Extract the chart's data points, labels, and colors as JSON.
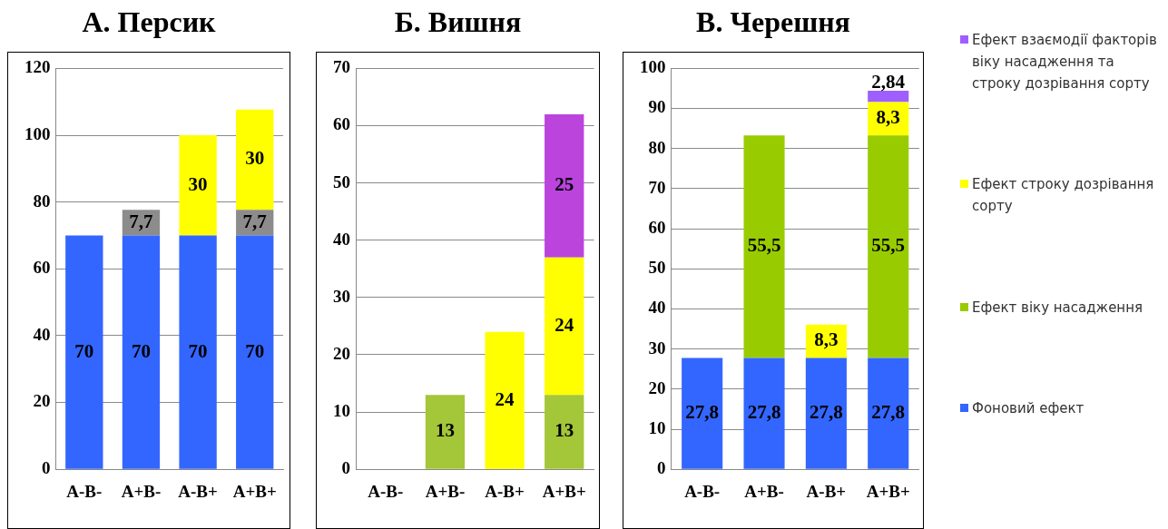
{
  "chart_data": [
    {
      "type": "bar",
      "title": "А. Персик",
      "categories": [
        "A-B-",
        "A+B-",
        "A-B+",
        "A+B+"
      ],
      "stacked": true,
      "grid": "y",
      "ylim": [
        0,
        120
      ],
      "yticks": [
        0,
        20,
        40,
        60,
        80,
        100,
        120
      ],
      "series": [
        {
          "color": "#3366ff",
          "values": [
            70,
            70,
            70,
            70
          ],
          "value_labels": [
            "70",
            "70",
            "70",
            "70"
          ]
        },
        {
          "color": "#8c8c8c",
          "values": [
            null,
            7.7,
            null,
            7.7
          ],
          "value_labels": [
            null,
            "7,7",
            null,
            "7,7"
          ]
        },
        {
          "color": "#ffff00",
          "values": [
            null,
            null,
            30,
            30
          ],
          "value_labels": [
            null,
            null,
            "30",
            "30"
          ]
        }
      ]
    },
    {
      "type": "bar",
      "title": "Б. Вишня",
      "categories": [
        "A-B-",
        "A+B-",
        "A-B+",
        "A+B+"
      ],
      "stacked": true,
      "grid": "y",
      "ylim": [
        0,
        70
      ],
      "yticks": [
        0,
        10,
        20,
        30,
        40,
        50,
        60,
        70
      ],
      "series": [
        {
          "color": "#a4c639",
          "values": [
            null,
            13,
            null,
            13
          ],
          "value_labels": [
            null,
            "13",
            null,
            "13"
          ]
        },
        {
          "color": "#ffff00",
          "values": [
            null,
            null,
            24,
            24
          ],
          "value_labels": [
            null,
            null,
            "24",
            "24"
          ]
        },
        {
          "color": "#bb44dd",
          "values": [
            null,
            null,
            null,
            25
          ],
          "value_labels": [
            null,
            null,
            null,
            "25"
          ]
        }
      ]
    },
    {
      "type": "bar",
      "title": "В. Черешня",
      "categories": [
        "A-B-",
        "A+B-",
        "A-B+",
        "A+B+"
      ],
      "stacked": true,
      "grid": "y",
      "legend": "right",
      "ylim": [
        0,
        100
      ],
      "yticks": [
        0,
        10,
        20,
        30,
        40,
        50,
        60,
        70,
        80,
        90,
        100
      ],
      "series": [
        {
          "name": "Фоновий ефект",
          "color": "#3366ff",
          "values": [
            27.8,
            27.8,
            27.8,
            27.8
          ],
          "value_labels": [
            "27,8",
            "27,8",
            "27,8",
            "27,8"
          ]
        },
        {
          "name": "Ефект віку насадження",
          "color": "#99cc00",
          "values": [
            null,
            55.5,
            null,
            55.5
          ],
          "value_labels": [
            null,
            "55,5",
            null,
            "55,5"
          ]
        },
        {
          "name": "Ефект строку дозрівання  сорту",
          "color": "#ffff00",
          "values": [
            null,
            null,
            8.3,
            8.3
          ],
          "value_labels": [
            null,
            null,
            "8,3",
            "8,3"
          ]
        },
        {
          "name": "Ефект взаємодії факторів віку насадження та строку дозрівання  сорту",
          "color": "#9f5fff",
          "values": [
            null,
            null,
            null,
            2.84
          ],
          "value_labels": [
            null,
            null,
            null,
            "2,84"
          ]
        }
      ]
    }
  ]
}
